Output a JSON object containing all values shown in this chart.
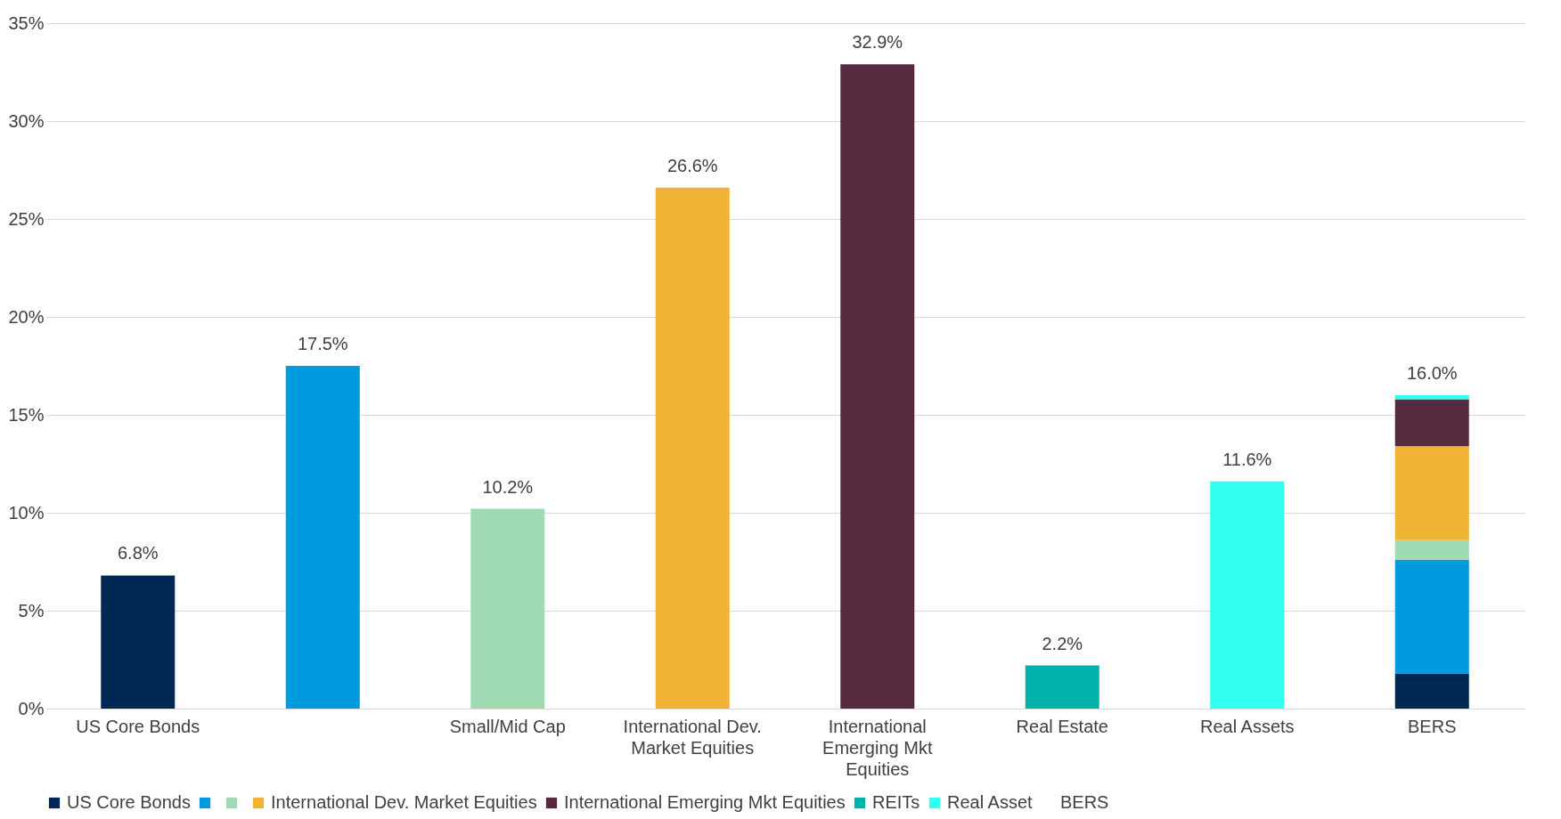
{
  "chart_data": {
    "type": "bar",
    "stacked": true,
    "categories": [
      "US Core Bonds",
      null,
      "Small/Mid Cap",
      "International Dev. Market Equities",
      "International Emerging Mkt Equities",
      "Real Estate",
      "Real Assets",
      "BERS"
    ],
    "series": [
      {
        "name": "US Core Bonds",
        "color": "#002855",
        "values": [
          6.8,
          null,
          null,
          null,
          null,
          null,
          null,
          1.8
        ]
      },
      {
        "color": "#009ade",
        "values": [
          null,
          17.5,
          null,
          null,
          null,
          null,
          null,
          5.8
        ]
      },
      {
        "color": "#a0dab3",
        "values": [
          null,
          null,
          10.2,
          null,
          null,
          null,
          null,
          1.0
        ]
      },
      {
        "name": "International Dev. Market Equities",
        "color": "#f0b335",
        "values": [
          null,
          null,
          null,
          26.6,
          null,
          null,
          null,
          4.8
        ]
      },
      {
        "name": "International Emerging Mkt Equities",
        "color": "#562a3e",
        "values": [
          null,
          null,
          null,
          null,
          32.9,
          null,
          null,
          2.4
        ]
      },
      {
        "name": "REITs",
        "color": "#00b2a9",
        "values": [
          null,
          null,
          null,
          null,
          null,
          2.2,
          null,
          null
        ]
      },
      {
        "name": "Real Asset",
        "color": "#33fff0",
        "values": [
          null,
          null,
          null,
          null,
          null,
          null,
          11.6,
          0.2
        ]
      },
      {
        "name": "BERS",
        "values": [
          null,
          null,
          null,
          null,
          null,
          null,
          null,
          null
        ]
      }
    ],
    "totals": [
      "6.8%",
      "17.5%",
      "10.2%",
      "26.6%",
      "32.9%",
      "2.2%",
      "11.6%",
      "16.0%"
    ],
    "ylim": [
      0,
      35
    ],
    "yticks": [
      {
        "value": 0,
        "label": "0%"
      },
      {
        "value": 5,
        "label": "5%"
      },
      {
        "value": 10,
        "label": "10%"
      },
      {
        "value": 15,
        "label": "15%"
      },
      {
        "value": 20,
        "label": "20%"
      },
      {
        "value": 25,
        "label": "25%"
      },
      {
        "value": 30,
        "label": "30%"
      },
      {
        "value": 35,
        "label": "35%"
      }
    ],
    "grid": "y",
    "legend": "bottom"
  }
}
